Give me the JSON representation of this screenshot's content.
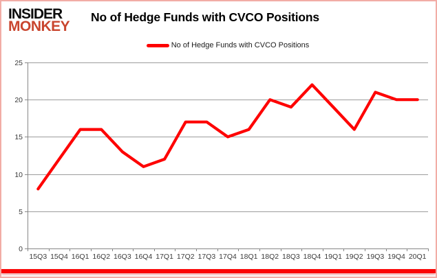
{
  "logo": {
    "line1": "INSIDER",
    "line2": "MONKEY"
  },
  "title": "No of Hedge Funds with CVCO Positions",
  "legend": {
    "label": "No of Hedge Funds with CVCO Positions"
  },
  "colors": {
    "line": "#fe0000",
    "logo_red": "#c9452e",
    "gridline": "#9b9b9b",
    "axis": "#868686",
    "tick_label": "#3a3a3a",
    "bottom_bar": "#fb0505",
    "frame_border": "#f2aca6"
  },
  "chart_data": {
    "type": "line",
    "title": "No of Hedge Funds with CVCO Positions",
    "legend_entries": [
      "No of Hedge Funds with CVCO Positions"
    ],
    "legend_position": "top",
    "grid": true,
    "xlabel": "",
    "ylabel": "",
    "ylim": [
      0,
      25
    ],
    "ytick_step": 5,
    "yticks": [
      0,
      5,
      10,
      15,
      20,
      25
    ],
    "categories": [
      "15Q3",
      "15Q4",
      "16Q1",
      "16Q2",
      "16Q3",
      "16Q4",
      "17Q1",
      "17Q2",
      "17Q3",
      "17Q4",
      "18Q1",
      "18Q2",
      "18Q3",
      "18Q4",
      "19Q1",
      "19Q2",
      "19Q3",
      "19Q4",
      "20Q1"
    ],
    "series": [
      {
        "name": "No of Hedge Funds with CVCO Positions",
        "values": [
          8,
          12,
          16,
          16,
          13,
          11,
          12,
          17,
          17,
          15,
          16,
          20,
          19,
          22,
          19,
          16,
          21,
          20,
          20
        ]
      }
    ]
  }
}
